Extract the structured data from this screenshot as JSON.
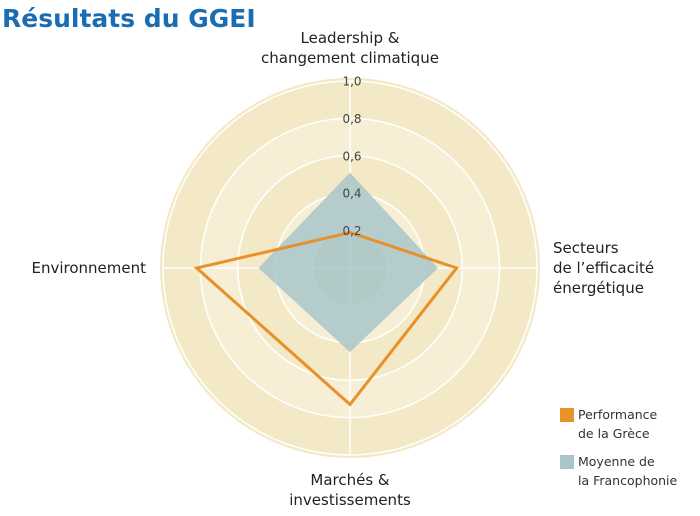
{
  "chart_data": {
    "type": "radar",
    "title": "Résultats du GGEI",
    "categories": [
      "Leadership &\nchangement climatique",
      "Secteurs\nde l’efficacité\nénergétique",
      "Marchés &\ninvestissements",
      "Environnement"
    ],
    "series": [
      {
        "name": "Performance\nde la Grèce",
        "color": "#e8902a",
        "values": [
          0.19,
          0.57,
          0.73,
          0.82
        ]
      },
      {
        "name": "Moyenne de\nla Francophonie",
        "color": "#a8c5c9",
        "values": [
          0.51,
          0.47,
          0.45,
          0.49
        ]
      }
    ],
    "rlim": [
      0,
      1
    ],
    "rticks": [
      {
        "value": 0.2,
        "label": "0,2"
      },
      {
        "value": 0.4,
        "label": "0,4"
      },
      {
        "value": 0.6,
        "label": "0,6"
      },
      {
        "value": 0.8,
        "label": "0,8"
      },
      {
        "value": 1.0,
        "label": "1,0"
      }
    ]
  }
}
